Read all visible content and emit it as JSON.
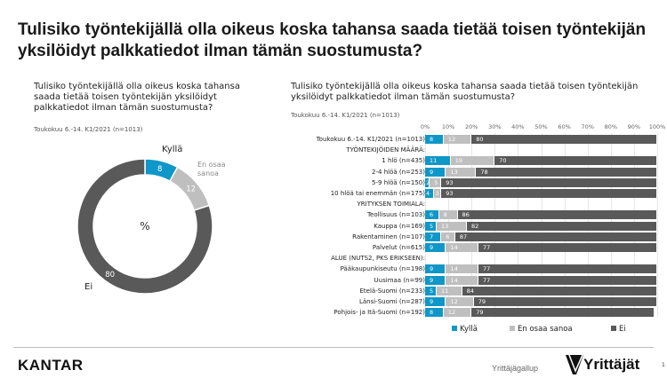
{
  "title": "Tulisiko työntekijällä olla oikeus koska tahansa saada tietää toisen työntekijän yksilöidyt palkkatiedot ilman tämän suostumusta?",
  "colors": {
    "kylla": "#0f97c8",
    "eos": "#bfbfbf",
    "ei": "#595959"
  },
  "chart_data": [
    {
      "type": "pie",
      "subtype": "donut",
      "title": "Tulisiko työntekijällä olla oikeus koska tahansa saada tietää toisen työntekijän yksilöidyt palkkatiedot ilman tämän suostumusta?",
      "subtitle": "Toukokuu 6.-14. K1/2021 (n=1013)",
      "center_label": "%",
      "categories": [
        "Kyllä",
        "En osaa sanoa",
        "Ei"
      ],
      "values": [
        8,
        12,
        80
      ]
    },
    {
      "type": "bar",
      "orientation": "horizontal",
      "stacked": true,
      "title": "Tulisiko työntekijällä olla oikeus koska tahansa saada tietää toisen työntekijän yksilöidyt palkkatiedot ilman tämän suostumusta?",
      "subtitle": "Toukokuu 6.-14. K1/2021 (n=1013)",
      "xlim": [
        0,
        100
      ],
      "xticks": [
        "0%",
        "10%",
        "20%",
        "30%",
        "40%",
        "50%",
        "60%",
        "70%",
        "80%",
        "90%",
        "100%"
      ],
      "grid": true,
      "legend": "bottom",
      "categories": [
        "Toukokuu 6.-14. K1/2021 (n=1013)",
        "TYÖNTEKIJÖIDEN MÄÄRÄ:",
        "1 hlö (n=435)",
        "2-4 hlöä (n=253)",
        "5-9 hlöä (n=150)",
        "10 hlöä tai enemmän (n=175)",
        "YRITYKSEN TOIMIALA:",
        "Teollisuus (n=103)",
        "Kauppa (n=169)",
        "Rakentaminen (n=107)",
        "Palvelut (n=615)",
        "ALUE (NUTS2, PKS ERIKSEEN):",
        "Pääkaupunkiseutu (n=198)",
        "Uusimaa (n=99)",
        "Etelä-Suomi (n=233)",
        "Länsi-Suomi (n=287)",
        "Pohjois- ja Itä-Suomi (n=192)"
      ],
      "series": [
        {
          "name": "Kyllä",
          "values": [
            8,
            null,
            11,
            9,
            2,
            4,
            null,
            6,
            5,
            7,
            9,
            null,
            9,
            9,
            5,
            9,
            8
          ]
        },
        {
          "name": "En osaa sanoa",
          "values": [
            12,
            null,
            19,
            13,
            5,
            3,
            null,
            8,
            13,
            6,
            14,
            null,
            14,
            14,
            11,
            12,
            12
          ]
        },
        {
          "name": "Ei",
          "values": [
            80,
            null,
            70,
            78,
            93,
            93,
            null,
            86,
            82,
            87,
            77,
            null,
            77,
            77,
            84,
            79,
            79
          ]
        }
      ]
    }
  ],
  "footer": {
    "brand_left": "KANTAR",
    "source": "Yrittäjägallup",
    "brand_right": "Yrittäjät",
    "page_number": "1"
  }
}
